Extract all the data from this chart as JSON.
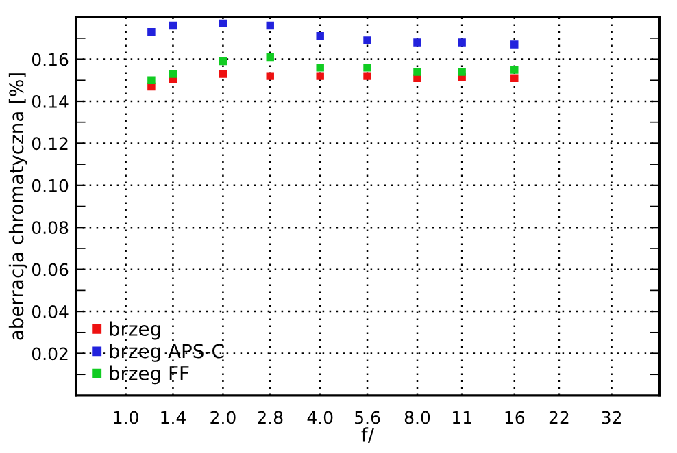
{
  "chart_data": {
    "type": "scatter",
    "xlabel": "f/",
    "ylabel": "aberracja chromatyczna [%]",
    "x": [
      1.2,
      1.4,
      2.0,
      2.8,
      4.0,
      5.6,
      8.0,
      11,
      16
    ],
    "series": [
      {
        "name": "brzeg",
        "color": "#ee1111",
        "values": [
          0.147,
          0.1505,
          0.153,
          0.152,
          0.152,
          0.152,
          0.151,
          0.1515,
          0.151
        ]
      },
      {
        "name": "brzeg APS-C",
        "color": "#2222dd",
        "values": [
          0.173,
          0.176,
          0.177,
          0.176,
          0.171,
          0.169,
          0.168,
          0.168,
          0.167
        ]
      },
      {
        "name": "brzeg FF",
        "color": "#11cc22",
        "values": [
          0.15,
          0.153,
          0.159,
          0.161,
          0.156,
          0.156,
          0.154,
          0.154,
          0.155
        ]
      }
    ],
    "log": "x",
    "xlim": [
      0.7,
      45
    ],
    "xticks": [
      {
        "value": 1.0,
        "label": "1.0"
      },
      {
        "value": 1.4,
        "label": "1.4"
      },
      {
        "value": 2.0,
        "label": "2.0"
      },
      {
        "value": 2.8,
        "label": "2.8"
      },
      {
        "value": 4.0,
        "label": "4.0"
      },
      {
        "value": 5.6,
        "label": "5.6"
      },
      {
        "value": 8.0,
        "label": "8.0"
      },
      11,
      16,
      22,
      32
    ],
    "ylim": [
      0,
      0.18
    ],
    "yticks": [
      {
        "value": 0.01,
        "label": null
      },
      0.02,
      {
        "value": 0.03,
        "label": null
      },
      0.04,
      {
        "value": 0.05,
        "label": null
      },
      0.06,
      {
        "value": 0.07,
        "label": null
      },
      {
        "value": 0.08,
        "label": "0.08"
      },
      {
        "value": 0.09,
        "label": null
      },
      {
        "value": 0.1,
        "label": "0.10"
      },
      {
        "value": 0.11,
        "label": null
      },
      0.12,
      {
        "value": 0.13,
        "label": null
      },
      0.14,
      {
        "value": 0.15,
        "label": null
      },
      0.16,
      {
        "value": 0.17,
        "label": null
      }
    ],
    "grid": true,
    "legend": "bottom left",
    "marker": "square"
  }
}
